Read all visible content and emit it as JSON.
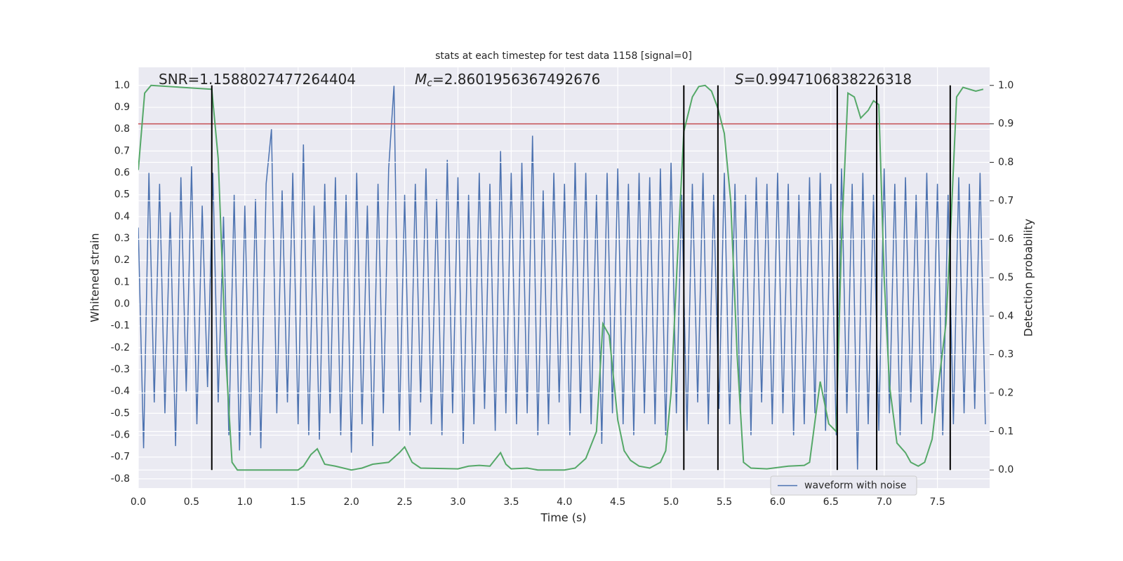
{
  "chart_data": {
    "type": "line",
    "title": "stats at each timestep for test data 1158 [signal=0]",
    "xlabel": "Time (s)",
    "ylabel": "Whitened strain",
    "y2label": "Detection probability",
    "annotations": [
      {
        "text": "SNR=1.1588027477264404"
      },
      {
        "symbol": "M",
        "subscript": "c",
        "text": "=2.8601956367492676"
      },
      {
        "symbol": "S",
        "text": "=0.9947106838226318"
      }
    ],
    "xlim": [
      0,
      7.99
    ],
    "ylim": [
      -0.842,
      1.083
    ],
    "y2lim": [
      -0.047,
      1.047
    ],
    "xticks": [
      {
        "value": 0,
        "label": "0.0"
      },
      0.5,
      {
        "value": 1,
        "label": "1.0"
      },
      1.5,
      {
        "value": 2,
        "label": "2.0"
      },
      2.5,
      {
        "value": 3,
        "label": "3.0"
      },
      3.5,
      {
        "value": 4,
        "label": "4.0"
      },
      4.5,
      {
        "value": 5,
        "label": "5.0"
      },
      5.5,
      {
        "value": 6,
        "label": "6.0"
      },
      6.5,
      {
        "value": 7,
        "label": "7.0"
      },
      7.5
    ],
    "yticks": [
      -0.8,
      -0.7,
      -0.6,
      -0.5,
      -0.4,
      -0.3,
      -0.2,
      -0.1,
      {
        "value": 0,
        "label": "0.0"
      },
      0.1,
      0.2,
      0.3,
      0.4,
      0.5,
      0.6,
      0.7,
      0.8,
      0.9,
      {
        "value": 1,
        "label": "1.0"
      }
    ],
    "y2ticks": [
      {
        "value": 0,
        "label": "0.0"
      },
      0.1,
      0.2,
      0.3,
      0.4,
      0.5,
      0.6,
      0.7,
      0.8,
      0.9,
      {
        "value": 1,
        "label": "1.0"
      }
    ],
    "grid": true,
    "legend": "lower right",
    "series": [
      {
        "name": "waveform with noise",
        "color": "#4c72b0",
        "axis": "y",
        "x": [
          0,
          0.05,
          0.1,
          0.15,
          0.2,
          0.25,
          0.3,
          0.35,
          0.4,
          0.45,
          0.5,
          0.55,
          0.6,
          0.65,
          0.7,
          0.75,
          0.8,
          0.85,
          0.9,
          0.95,
          1,
          1.05,
          1.1,
          1.15,
          1.2,
          1.25,
          1.3,
          1.35,
          1.4,
          1.45,
          1.5,
          1.55,
          1.6,
          1.65,
          1.7,
          1.75,
          1.8,
          1.85,
          1.9,
          1.95,
          2,
          2.05,
          2.1,
          2.15,
          2.2,
          2.25,
          2.3,
          2.35,
          2.4,
          2.45,
          2.5,
          2.55,
          2.6,
          2.65,
          2.7,
          2.75,
          2.8,
          2.85,
          2.9,
          2.95,
          3,
          3.05,
          3.1,
          3.15,
          3.2,
          3.25,
          3.3,
          3.35,
          3.4,
          3.45,
          3.5,
          3.55,
          3.6,
          3.65,
          3.7,
          3.75,
          3.8,
          3.85,
          3.9,
          3.95,
          4,
          4.05,
          4.1,
          4.15,
          4.2,
          4.25,
          4.3,
          4.35,
          4.4,
          4.45,
          4.5,
          4.55,
          4.6,
          4.65,
          4.7,
          4.75,
          4.8,
          4.85,
          4.9,
          4.95,
          5,
          5.05,
          5.1,
          5.15,
          5.2,
          5.25,
          5.3,
          5.35,
          5.4,
          5.45,
          5.5,
          5.55,
          5.6,
          5.65,
          5.7,
          5.75,
          5.8,
          5.85,
          5.9,
          5.95,
          6,
          6.05,
          6.1,
          6.15,
          6.2,
          6.25,
          6.3,
          6.35,
          6.4,
          6.45,
          6.5,
          6.55,
          6.6,
          6.65,
          6.7,
          6.75,
          6.8,
          6.85,
          6.9,
          6.95,
          7,
          7.05,
          7.1,
          7.15,
          7.2,
          7.25,
          7.3,
          7.35,
          7.4,
          7.45,
          7.5,
          7.55,
          7.6,
          7.65,
          7.7,
          7.75,
          7.8,
          7.85,
          7.9,
          7.95
        ],
        "values": [
          0.35,
          -0.66,
          0.6,
          -0.45,
          0.55,
          -0.5,
          0.42,
          -0.65,
          0.58,
          -0.4,
          0.63,
          -0.55,
          0.45,
          -0.38,
          0.6,
          -0.45,
          0.4,
          -0.6,
          0.5,
          -0.67,
          0.45,
          -0.6,
          0.48,
          -0.66,
          0.55,
          0.8,
          -0.5,
          0.52,
          -0.45,
          0.6,
          -0.55,
          0.73,
          -0.6,
          0.45,
          -0.62,
          0.55,
          -0.5,
          0.58,
          -0.6,
          0.5,
          -0.68,
          0.6,
          -0.55,
          0.45,
          -0.65,
          0.55,
          -0.5,
          0.62,
          1.0,
          -0.58,
          0.5,
          -0.6,
          0.55,
          -0.45,
          0.62,
          -0.55,
          0.48,
          -0.6,
          0.66,
          -0.5,
          0.58,
          -0.64,
          0.5,
          -0.55,
          0.6,
          -0.48,
          0.55,
          -0.58,
          0.7,
          -0.5,
          0.6,
          -0.55,
          0.65,
          -0.5,
          0.77,
          -0.6,
          0.52,
          -0.55,
          0.6,
          -0.45,
          0.55,
          -0.6,
          0.65,
          -0.5,
          0.6,
          -0.55,
          0.5,
          -0.64,
          0.6,
          -0.5,
          0.62,
          -0.55,
          0.55,
          -0.6,
          0.6,
          -0.5,
          0.58,
          -0.55,
          0.62,
          -0.6,
          0.65,
          -0.5,
          0.5,
          -0.58,
          0.55,
          -0.45,
          0.6,
          -0.55,
          0.5,
          -0.48,
          0.6,
          -0.55,
          0.55,
          -0.5,
          0.5,
          -0.6,
          0.58,
          -0.45,
          0.55,
          -0.55,
          0.6,
          -0.5,
          0.55,
          -0.6,
          0.5,
          -0.55,
          0.58,
          -0.5,
          0.6,
          -0.58,
          0.55,
          -0.6,
          0.62,
          -0.5,
          0.55,
          -0.76,
          0.6,
          -0.55,
          0.5,
          -0.58,
          0.62,
          -0.5,
          0.55,
          -0.6,
          0.58,
          -0.45,
          0.5,
          -0.55,
          0.6,
          -0.5,
          0.55,
          -0.6,
          0.5,
          -0.55,
          0.58,
          -0.5,
          0.55,
          -0.48,
          0.6,
          -0.55
        ]
      },
      {
        "color": "#55a868",
        "axis": "y2",
        "x": [
          0,
          0.06,
          0.12,
          0.69,
          0.75,
          0.82,
          0.88,
          0.93,
          1,
          1.25,
          1.5,
          1.55,
          1.62,
          1.68,
          1.75,
          1.85,
          2,
          2.1,
          2.2,
          2.35,
          2.45,
          2.5,
          2.57,
          2.65,
          3,
          3.1,
          3.2,
          3.3,
          3.4,
          3.45,
          3.5,
          3.65,
          3.75,
          4,
          4.1,
          4.2,
          4.3,
          4.36,
          4.42,
          4.5,
          4.56,
          4.62,
          4.7,
          4.8,
          4.9,
          4.95,
          5,
          5.06,
          5.12,
          5.2,
          5.26,
          5.32,
          5.38,
          5.44,
          5.5,
          5.56,
          5.62,
          5.68,
          5.75,
          5.9,
          6.1,
          6.25,
          6.3,
          6.4,
          6.48,
          6.55,
          6.6,
          6.66,
          6.72,
          6.78,
          6.85,
          6.9,
          6.95,
          7,
          7.05,
          7.12,
          7.2,
          7.25,
          7.32,
          7.38,
          7.45,
          7.5,
          7.58,
          7.62,
          7.68,
          7.74,
          7.8,
          7.86,
          7.93
        ],
        "values": [
          0.78,
          0.98,
          1.0,
          0.99,
          0.81,
          0.3,
          0.02,
          0.0,
          0.0,
          0.0,
          0.0,
          0.01,
          0.04,
          0.055,
          0.015,
          0.01,
          0.0,
          0.005,
          0.015,
          0.02,
          0.045,
          0.06,
          0.02,
          0.005,
          0.003,
          0.01,
          0.012,
          0.01,
          0.045,
          0.015,
          0.003,
          0.005,
          0.0,
          0.0,
          0.005,
          0.03,
          0.1,
          0.38,
          0.35,
          0.13,
          0.05,
          0.025,
          0.01,
          0.005,
          0.02,
          0.05,
          0.2,
          0.55,
          0.88,
          0.97,
          0.997,
          1.0,
          0.985,
          0.94,
          0.875,
          0.7,
          0.3,
          0.02,
          0.005,
          0.003,
          0.01,
          0.012,
          0.02,
          0.23,
          0.12,
          0.1,
          0.6,
          0.98,
          0.97,
          0.915,
          0.935,
          0.96,
          0.95,
          0.5,
          0.22,
          0.07,
          0.045,
          0.02,
          0.01,
          0.02,
          0.08,
          0.2,
          0.38,
          0.6,
          0.97,
          0.995,
          0.99,
          0.985,
          0.99
        ]
      }
    ],
    "threshold": {
      "value": 0.9,
      "color": "#c44e52",
      "axis": "y2"
    },
    "vlines": {
      "x": [
        0.69,
        5.12,
        5.44,
        6.56,
        6.93,
        7.62
      ],
      "span": [
        0,
        1
      ],
      "color": "#000000",
      "axis": "y2"
    }
  }
}
